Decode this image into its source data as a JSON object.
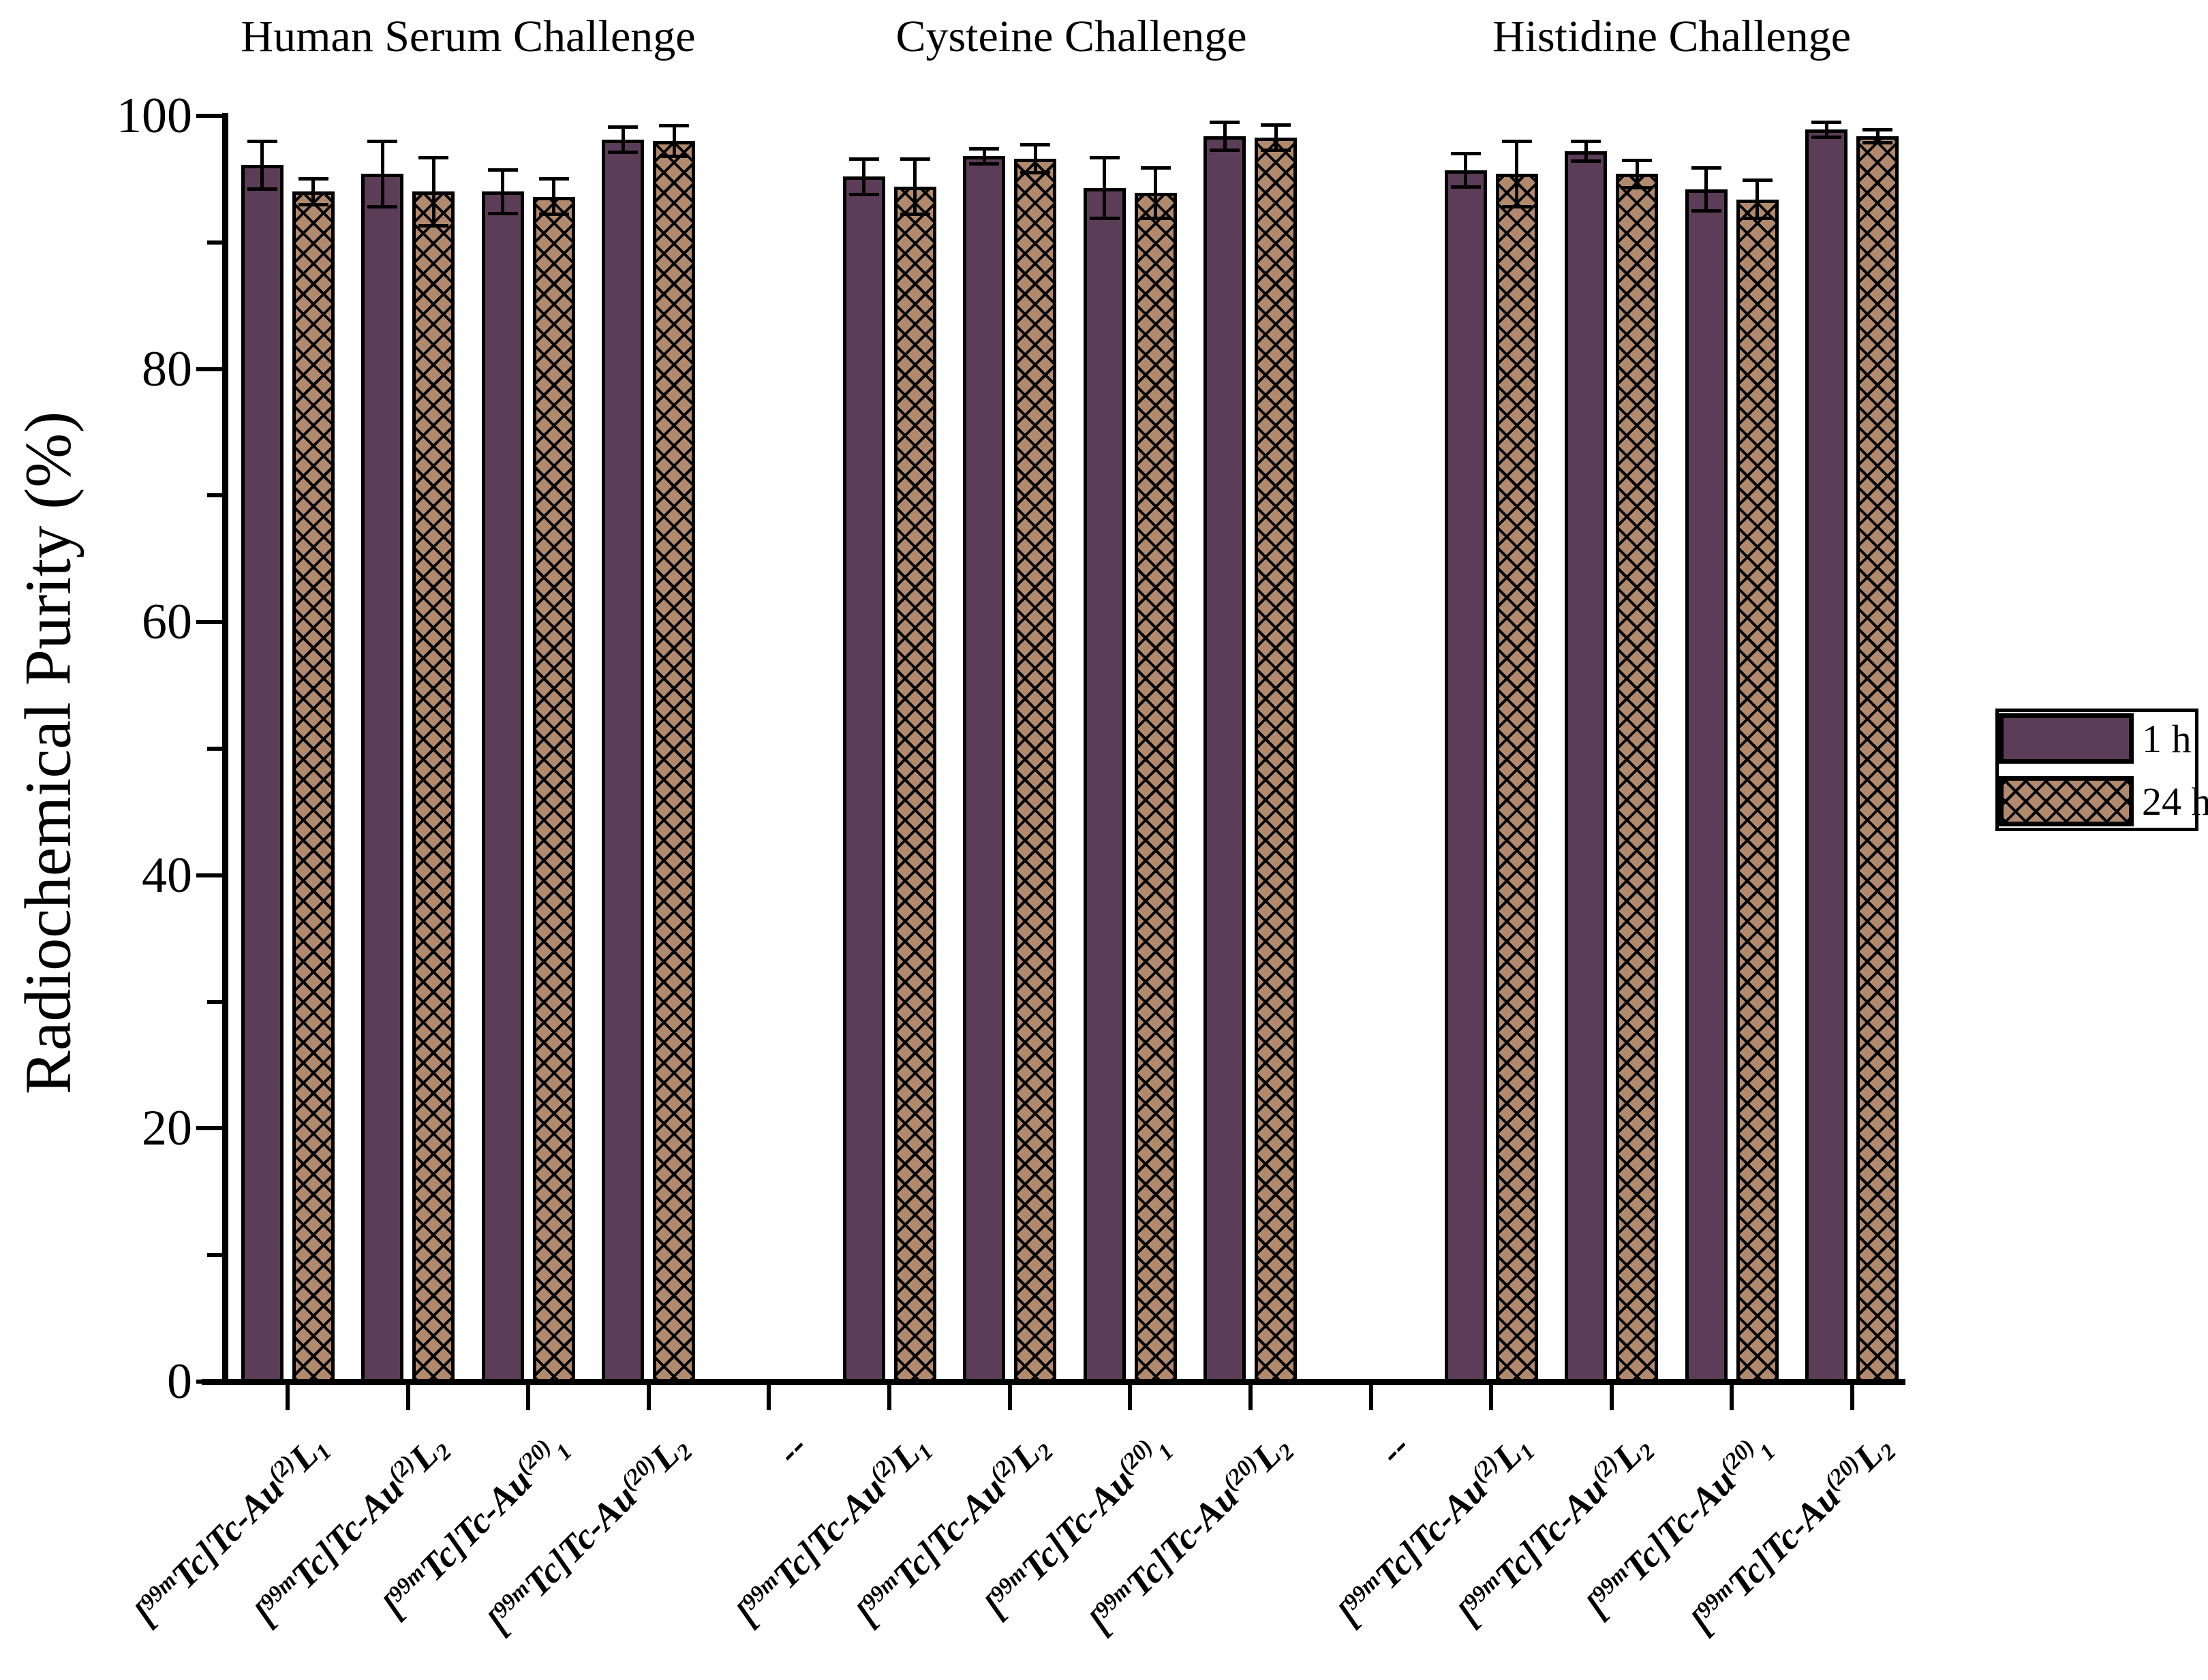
{
  "chart_data": {
    "type": "bar",
    "title": "",
    "ylabel": "Radiochemical Purity (%)",
    "xlabel": "",
    "ylim": [
      0,
      100
    ],
    "yticks_major": [
      0,
      20,
      40,
      60,
      80,
      100
    ],
    "yticks_minor": [
      10,
      30,
      50,
      70,
      90
    ],
    "grid": false,
    "legend_position": "right",
    "separator_label": "--",
    "colors": {
      "series_1h": "#5c3d58",
      "series_24h": "#b18a6e",
      "axis": "#000000",
      "background": "#ffffff"
    },
    "legend": [
      {
        "name": "1 h",
        "pattern": "solid"
      },
      {
        "name": "24 h",
        "pattern": "crosshatch"
      }
    ],
    "category_label_segments": [
      [
        [
          "[",
          0
        ],
        [
          "99m",
          1
        ],
        [
          "Tc]Tc-Au",
          0
        ],
        [
          "(2)",
          1
        ],
        [
          "L",
          0
        ],
        [
          "1",
          -1
        ]
      ],
      [
        [
          "[",
          0
        ],
        [
          "99m",
          1
        ],
        [
          "Tc]Tc-Au",
          0
        ],
        [
          "(2)",
          1
        ],
        [
          "L",
          0
        ],
        [
          "2",
          -1
        ]
      ],
      [
        [
          "[",
          0
        ],
        [
          "99m",
          1
        ],
        [
          "Tc]Tc-Au",
          0
        ],
        [
          "(20)",
          1
        ],
        [
          "1",
          -1
        ]
      ],
      [
        [
          "[",
          0
        ],
        [
          "99m",
          1
        ],
        [
          "Tc]Tc-Au",
          0
        ],
        [
          "(20)",
          1
        ],
        [
          "L",
          0
        ],
        [
          "2",
          -1
        ]
      ]
    ],
    "groups": [
      {
        "title": "Human Serum Challenge",
        "series": [
          {
            "name": "1 h",
            "values": [
              96.1,
              95.4,
              94.0,
              98.1
            ],
            "errors": [
              1.9,
              2.6,
              1.7,
              1.0
            ]
          },
          {
            "name": "24 h",
            "values": [
              94.0,
              94.0,
              93.6,
              98.0
            ],
            "errors": [
              1.0,
              2.7,
              1.4,
              1.2
            ]
          }
        ]
      },
      {
        "title": "Cysteine Challenge",
        "series": [
          {
            "name": "1 h",
            "values": [
              95.2,
              96.8,
              94.3,
              98.4
            ],
            "errors": [
              1.4,
              0.6,
              2.4,
              1.1
            ]
          },
          {
            "name": "24 h",
            "values": [
              94.4,
              96.6,
              93.9,
              98.3
            ],
            "errors": [
              2.2,
              1.1,
              2.0,
              1.0
            ]
          }
        ]
      },
      {
        "title": "Histidine Challenge",
        "series": [
          {
            "name": "1 h",
            "values": [
              95.7,
              97.2,
              94.2,
              98.9
            ],
            "errors": [
              1.3,
              0.8,
              1.7,
              0.6
            ]
          },
          {
            "name": "24 h",
            "values": [
              95.4,
              95.4,
              93.4,
              98.4
            ],
            "errors": [
              2.6,
              1.1,
              1.5,
              0.5
            ]
          }
        ]
      }
    ]
  }
}
